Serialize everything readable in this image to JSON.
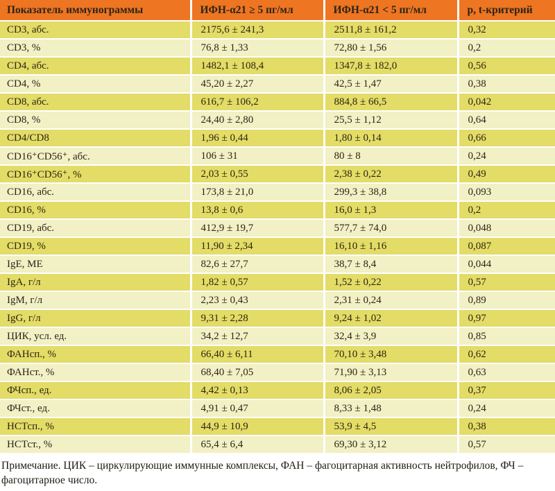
{
  "table": {
    "columns": [
      "Показатель иммунограммы",
      "ИФН-α21 ≥ 5 пг/мл",
      "ИФН-α21 < 5 пг/мл",
      "p, t-критерий"
    ],
    "rows": [
      [
        "CD3, абс.",
        "2175,6 ± 241,3",
        "2511,8 ± 161,2",
        "0,32"
      ],
      [
        "CD3, %",
        "76,8 ± 1,33",
        "72,80 ± 1,56",
        "0,2"
      ],
      [
        "CD4, абс.",
        "1482,1 ± 108,4",
        "1347,8 ± 182,0",
        "0,56"
      ],
      [
        "CD4, %",
        "45,20 ± 2,27",
        "42,5 ± 1,47",
        "0,38"
      ],
      [
        "CD8, абс.",
        "616,7 ± 106,2",
        "884,8 ± 66,5",
        "0,042"
      ],
      [
        "CD8, %",
        "24,40 ± 2,80",
        "25,5 ± 1,12",
        "0,64"
      ],
      [
        "CD4/CD8",
        "1,96 ± 0,44",
        "1,80 ± 0,14",
        "0,66"
      ],
      [
        "CD16⁺CD56⁺, абс.",
        "106 ± 31",
        "80 ± 8",
        "0,24"
      ],
      [
        "CD16⁺CD56⁺, %",
        "2,03 ± 0,55",
        "2,38 ± 0,22",
        "0,49"
      ],
      [
        "CD16, абс.",
        "173,8 ± 21,0",
        "299,3 ± 38,8",
        "0,093"
      ],
      [
        "CD16, %",
        "13,8 ± 0,6",
        "16,0 ± 1,3",
        "0,2"
      ],
      [
        "CD19, абс.",
        "412,9 ± 19,7",
        "577,7 ± 74,0",
        "0,048"
      ],
      [
        "CD19, %",
        "11,90 ± 2,34",
        "16,10 ± 1,16",
        "0,087"
      ],
      [
        "IgE, МЕ",
        "82,6 ± 27,7",
        "38,7 ± 8,4",
        "0,044"
      ],
      [
        "IgA, г/л",
        "1,82 ± 0,57",
        "1,52 ± 0,22",
        "0,57"
      ],
      [
        "IgM, г/л",
        "2,23 ± 0,43",
        "2,31 ± 0,24",
        "0,89"
      ],
      [
        "IgG, г/л",
        "9,31 ± 2,28",
        "9,24 ± 1,02",
        "0,97"
      ],
      [
        "ЦИК, усл. ед.",
        "34,2 ± 12,7",
        "32,4 ± 3,9",
        "0,85"
      ],
      [
        "ФАНсп., %",
        "66,40 ± 6,11",
        "70,10 ± 3,48",
        "0,62"
      ],
      [
        "ФАНст., %",
        "68,40 ± 7,05",
        "71,90 ± 3,13",
        "0,63"
      ],
      [
        "ФЧсп., ед.",
        "4,42 ± 0,13",
        "8,06 ± 2,05",
        "0,37"
      ],
      [
        "ФЧст., ед.",
        "4,91 ± 0,47",
        "8,33 ± 1,48",
        "0,24"
      ],
      [
        "НСТсп., %",
        "44,9 ± 10,9",
        "53,9 ± 4,5",
        "0,38"
      ],
      [
        "НСТст., %",
        "65,4 ± 6,4",
        "69,30 ± 3,12",
        "0,57"
      ]
    ]
  },
  "note": "Примечание. ЦИК – циркулирующие иммунные комплексы, ФАН – фагоцитарная активность нейтрофилов, ФЧ – фагоцитарное число.",
  "colors": {
    "header_bg": "#EE7522",
    "row_odd_bg": "#E3DC66",
    "row_even_bg": "#F2F0C5",
    "separator": "#FFFFFF",
    "text": "#2B2416",
    "bottom_rule": "#D9D49B",
    "note_bg": "#FFFFFF"
  }
}
